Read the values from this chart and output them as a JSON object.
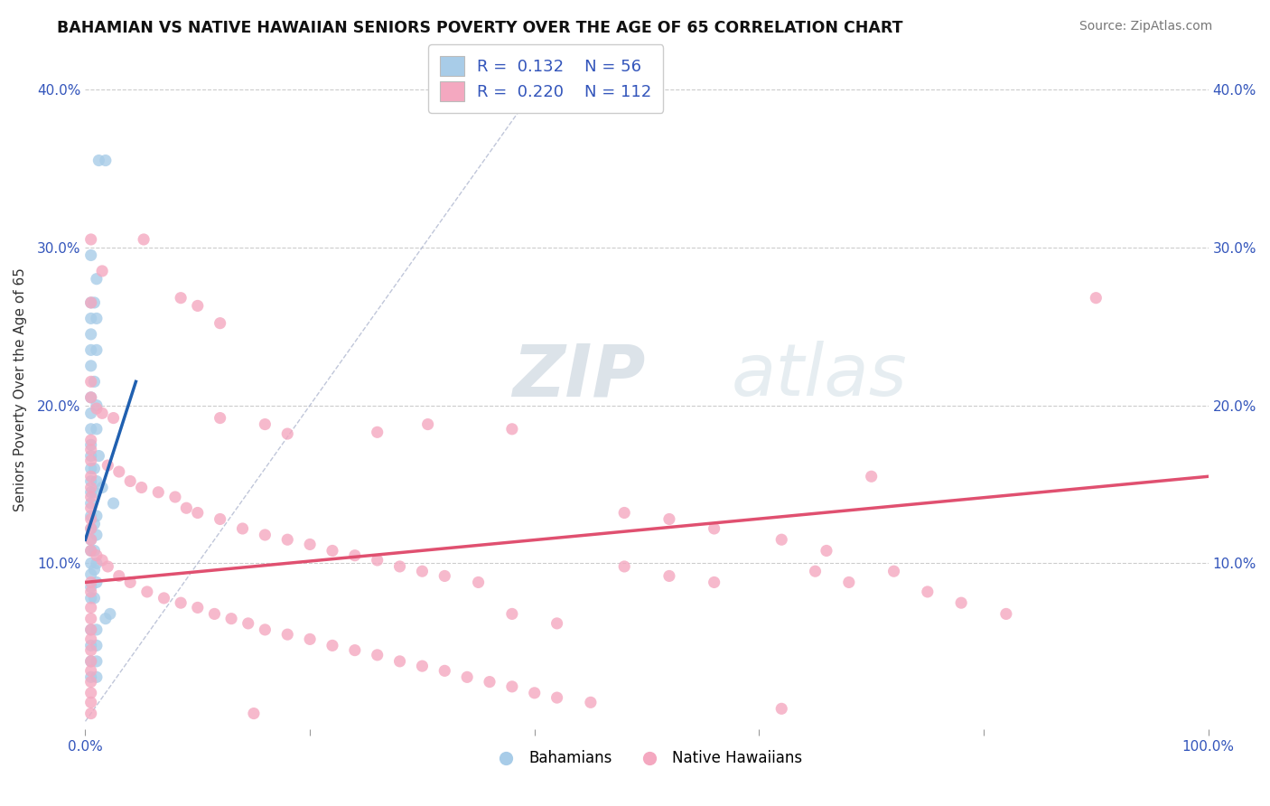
{
  "title": "BAHAMIAN VS NATIVE HAWAIIAN SENIORS POVERTY OVER THE AGE OF 65 CORRELATION CHART",
  "source": "Source: ZipAtlas.com",
  "ylabel": "Seniors Poverty Over the Age of 65",
  "xlim": [
    0,
    1.0
  ],
  "ylim": [
    -0.005,
    0.425
  ],
  "xticks": [
    0.0,
    0.2,
    0.4,
    0.6,
    0.8,
    1.0
  ],
  "yticks": [
    0.0,
    0.1,
    0.2,
    0.3,
    0.4
  ],
  "legend_blue_label": "Bahamians",
  "legend_pink_label": "Native Hawaiians",
  "R_blue": 0.132,
  "N_blue": 56,
  "R_pink": 0.22,
  "N_pink": 112,
  "blue_color": "#a8cce8",
  "pink_color": "#f4a8c0",
  "blue_line_color": "#2060b0",
  "pink_line_color": "#e05070",
  "diagonal_color": "#b0b8d0",
  "background_color": "#ffffff",
  "blue_line": [
    [
      0.0,
      0.115
    ],
    [
      0.045,
      0.215
    ]
  ],
  "pink_line": [
    [
      0.0,
      0.088
    ],
    [
      1.0,
      0.155
    ]
  ],
  "blue_points": [
    [
      0.012,
      0.355
    ],
    [
      0.018,
      0.355
    ],
    [
      0.005,
      0.295
    ],
    [
      0.01,
      0.28
    ],
    [
      0.005,
      0.265
    ],
    [
      0.008,
      0.265
    ],
    [
      0.005,
      0.255
    ],
    [
      0.01,
      0.255
    ],
    [
      0.005,
      0.245
    ],
    [
      0.005,
      0.235
    ],
    [
      0.01,
      0.235
    ],
    [
      0.005,
      0.225
    ],
    [
      0.008,
      0.215
    ],
    [
      0.005,
      0.205
    ],
    [
      0.005,
      0.195
    ],
    [
      0.01,
      0.2
    ],
    [
      0.005,
      0.185
    ],
    [
      0.01,
      0.185
    ],
    [
      0.005,
      0.175
    ],
    [
      0.005,
      0.168
    ],
    [
      0.012,
      0.168
    ],
    [
      0.005,
      0.16
    ],
    [
      0.008,
      0.16
    ],
    [
      0.005,
      0.152
    ],
    [
      0.01,
      0.152
    ],
    [
      0.005,
      0.145
    ],
    [
      0.008,
      0.145
    ],
    [
      0.005,
      0.138
    ],
    [
      0.005,
      0.13
    ],
    [
      0.01,
      0.13
    ],
    [
      0.005,
      0.122
    ],
    [
      0.008,
      0.125
    ],
    [
      0.005,
      0.115
    ],
    [
      0.01,
      0.118
    ],
    [
      0.005,
      0.108
    ],
    [
      0.008,
      0.108
    ],
    [
      0.005,
      0.1
    ],
    [
      0.01,
      0.1
    ],
    [
      0.005,
      0.093
    ],
    [
      0.008,
      0.096
    ],
    [
      0.005,
      0.085
    ],
    [
      0.01,
      0.088
    ],
    [
      0.005,
      0.078
    ],
    [
      0.008,
      0.078
    ],
    [
      0.015,
      0.148
    ],
    [
      0.025,
      0.138
    ],
    [
      0.018,
      0.065
    ],
    [
      0.022,
      0.068
    ],
    [
      0.005,
      0.058
    ],
    [
      0.01,
      0.058
    ],
    [
      0.005,
      0.048
    ],
    [
      0.01,
      0.048
    ],
    [
      0.005,
      0.038
    ],
    [
      0.01,
      0.038
    ],
    [
      0.005,
      0.028
    ],
    [
      0.01,
      0.028
    ]
  ],
  "pink_points": [
    [
      0.005,
      0.305
    ],
    [
      0.015,
      0.285
    ],
    [
      0.005,
      0.265
    ],
    [
      0.052,
      0.305
    ],
    [
      0.085,
      0.268
    ],
    [
      0.1,
      0.263
    ],
    [
      0.12,
      0.252
    ],
    [
      0.005,
      0.215
    ],
    [
      0.005,
      0.205
    ],
    [
      0.01,
      0.198
    ],
    [
      0.015,
      0.195
    ],
    [
      0.025,
      0.192
    ],
    [
      0.12,
      0.192
    ],
    [
      0.16,
      0.188
    ],
    [
      0.18,
      0.182
    ],
    [
      0.26,
      0.183
    ],
    [
      0.305,
      0.188
    ],
    [
      0.38,
      0.185
    ],
    [
      0.9,
      0.268
    ],
    [
      0.005,
      0.178
    ],
    [
      0.005,
      0.172
    ],
    [
      0.005,
      0.165
    ],
    [
      0.02,
      0.162
    ],
    [
      0.03,
      0.158
    ],
    [
      0.04,
      0.152
    ],
    [
      0.05,
      0.148
    ],
    [
      0.065,
      0.145
    ],
    [
      0.08,
      0.142
    ],
    [
      0.09,
      0.135
    ],
    [
      0.1,
      0.132
    ],
    [
      0.12,
      0.128
    ],
    [
      0.14,
      0.122
    ],
    [
      0.16,
      0.118
    ],
    [
      0.18,
      0.115
    ],
    [
      0.2,
      0.112
    ],
    [
      0.22,
      0.108
    ],
    [
      0.24,
      0.105
    ],
    [
      0.26,
      0.102
    ],
    [
      0.28,
      0.098
    ],
    [
      0.3,
      0.095
    ],
    [
      0.32,
      0.092
    ],
    [
      0.35,
      0.088
    ],
    [
      0.005,
      0.155
    ],
    [
      0.005,
      0.148
    ],
    [
      0.005,
      0.142
    ],
    [
      0.005,
      0.135
    ],
    [
      0.005,
      0.128
    ],
    [
      0.005,
      0.122
    ],
    [
      0.005,
      0.115
    ],
    [
      0.005,
      0.108
    ],
    [
      0.01,
      0.105
    ],
    [
      0.015,
      0.102
    ],
    [
      0.02,
      0.098
    ],
    [
      0.03,
      0.092
    ],
    [
      0.04,
      0.088
    ],
    [
      0.055,
      0.082
    ],
    [
      0.07,
      0.078
    ],
    [
      0.085,
      0.075
    ],
    [
      0.1,
      0.072
    ],
    [
      0.115,
      0.068
    ],
    [
      0.13,
      0.065
    ],
    [
      0.145,
      0.062
    ],
    [
      0.16,
      0.058
    ],
    [
      0.18,
      0.055
    ],
    [
      0.2,
      0.052
    ],
    [
      0.22,
      0.048
    ],
    [
      0.24,
      0.045
    ],
    [
      0.26,
      0.042
    ],
    [
      0.28,
      0.038
    ],
    [
      0.3,
      0.035
    ],
    [
      0.32,
      0.032
    ],
    [
      0.34,
      0.028
    ],
    [
      0.36,
      0.025
    ],
    [
      0.38,
      0.022
    ],
    [
      0.4,
      0.018
    ],
    [
      0.42,
      0.015
    ],
    [
      0.45,
      0.012
    ],
    [
      0.48,
      0.098
    ],
    [
      0.52,
      0.092
    ],
    [
      0.56,
      0.088
    ],
    [
      0.005,
      0.072
    ],
    [
      0.005,
      0.065
    ],
    [
      0.005,
      0.058
    ],
    [
      0.005,
      0.052
    ],
    [
      0.005,
      0.045
    ],
    [
      0.005,
      0.038
    ],
    [
      0.005,
      0.032
    ],
    [
      0.005,
      0.025
    ],
    [
      0.005,
      0.018
    ],
    [
      0.005,
      0.012
    ],
    [
      0.005,
      0.005
    ],
    [
      0.15,
      0.005
    ],
    [
      0.38,
      0.068
    ],
    [
      0.42,
      0.062
    ],
    [
      0.62,
      0.008
    ],
    [
      0.65,
      0.095
    ],
    [
      0.68,
      0.088
    ],
    [
      0.72,
      0.095
    ],
    [
      0.75,
      0.082
    ],
    [
      0.78,
      0.075
    ],
    [
      0.82,
      0.068
    ],
    [
      0.48,
      0.132
    ],
    [
      0.52,
      0.128
    ],
    [
      0.56,
      0.122
    ],
    [
      0.62,
      0.115
    ],
    [
      0.66,
      0.108
    ],
    [
      0.7,
      0.155
    ],
    [
      0.005,
      0.088
    ],
    [
      0.005,
      0.082
    ]
  ]
}
